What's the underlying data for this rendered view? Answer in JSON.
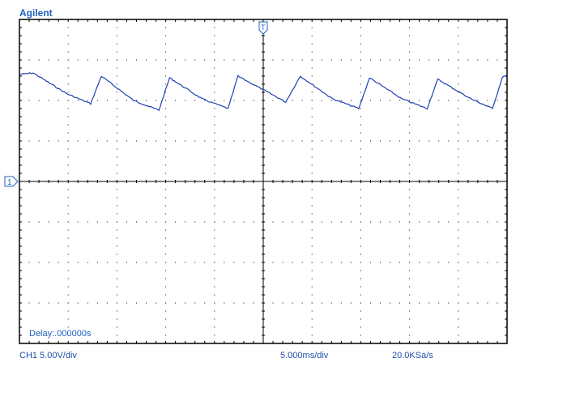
{
  "brand": "Agilent",
  "delay_label": "Delay:.000000s",
  "channel_label": "CH1 5.00V/div",
  "timebase_label": "5.000ms/div",
  "sample_rate_label": "20.0KSa/s",
  "channel_marker": "1",
  "trigger_marker": "T",
  "colors": {
    "trace": "#1f3fb0",
    "grid": "#000000",
    "text": "#1f5fbf"
  },
  "chart_data": {
    "type": "line",
    "title": "",
    "xlabel": "",
    "ylabel": "",
    "x_divisions": 10,
    "y_divisions": 8,
    "xlim": [
      -25,
      25
    ],
    "ylim": [
      -20,
      20
    ],
    "x_unit": "ms",
    "y_unit": "V",
    "grid": true,
    "series": [
      {
        "name": "",
        "x": [
          -25.0,
          -23.6,
          -20.1,
          -17.7,
          -16.6,
          -13.3,
          -10.7,
          -9.6,
          -6.3,
          -3.6,
          -2.6,
          0.8,
          2.3,
          3.8,
          7.1,
          9.8,
          10.9,
          14.2,
          16.8,
          17.9,
          21.3,
          23.5,
          24.5,
          25.0
        ],
        "y": [
          13.2,
          13.4,
          10.8,
          9.6,
          13.0,
          10.0,
          8.8,
          12.8,
          10.2,
          9.0,
          13.0,
          10.8,
          9.8,
          13.0,
          10.2,
          9.0,
          12.8,
          10.2,
          9.0,
          12.6,
          10.2,
          9.0,
          12.8,
          13.2
        ]
      }
    ]
  }
}
